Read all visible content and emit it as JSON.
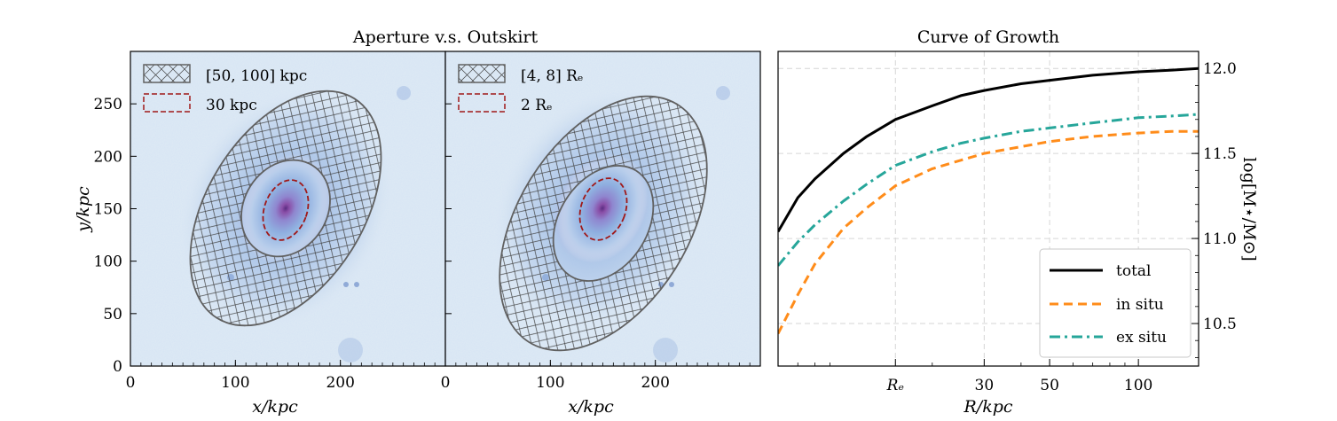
{
  "figure": {
    "left_title": "Aperture v.s. Outskirt",
    "right_title": "Curve of Growth"
  },
  "colors": {
    "ellipse_outline": "#606060",
    "aperture_dashed": "#a01818",
    "total": "#000000",
    "in_situ": "#ff8c1a",
    "ex_situ": "#26a69a",
    "map_background": "#dfeaf4",
    "map_core": "#5a2d82"
  },
  "images": {
    "xlabel": "x/kpc",
    "ylabel": "y/kpc",
    "x_ticks": [
      "0",
      "100",
      "200"
    ],
    "y_ticks": [
      "0",
      "50",
      "100",
      "150",
      "200",
      "250"
    ],
    "panels": [
      {
        "legend": [
          {
            "label": "[50, 100] kpc",
            "style": "hatched"
          },
          {
            "label": "30 kpc",
            "style": "dashed"
          }
        ]
      },
      {
        "legend": [
          {
            "label": "[4, 8] Rₑ",
            "style": "hatched"
          },
          {
            "label": "2 Rₑ",
            "style": "dashed"
          }
        ]
      }
    ]
  },
  "chart_data": {
    "type": "line",
    "title": "Curve of Growth",
    "xlabel": "R/kpc",
    "ylabel": "log[M⋆/M⊙]",
    "x_scale": "log",
    "xlim": [
      6,
      160
    ],
    "ylim": [
      10.25,
      12.1
    ],
    "y_axis_side": "right",
    "x_tick_labels": [
      {
        "label": "Rₑ",
        "x": 15
      },
      {
        "label": "30",
        "x": 30
      },
      {
        "label": "50",
        "x": 50
      },
      {
        "label": "100",
        "x": 100
      }
    ],
    "y_ticks": [
      10.5,
      11.0,
      11.5,
      12.0
    ],
    "y_tick_labels": [
      "10.5",
      "11.0",
      "11.5",
      "12.0"
    ],
    "grid": true,
    "legend_position": "lower-right",
    "x": [
      6,
      7,
      8,
      10,
      12,
      15,
      20,
      25,
      30,
      40,
      50,
      70,
      100,
      130,
      160
    ],
    "series": [
      {
        "name": "total",
        "style": "solid",
        "values": [
          11.04,
          11.24,
          11.35,
          11.5,
          11.6,
          11.7,
          11.78,
          11.84,
          11.87,
          11.91,
          11.93,
          11.96,
          11.98,
          11.99,
          12.0
        ]
      },
      {
        "name": "in situ",
        "style": "dashed",
        "values": [
          10.44,
          10.67,
          10.85,
          11.06,
          11.18,
          11.31,
          11.41,
          11.46,
          11.5,
          11.54,
          11.57,
          11.6,
          11.62,
          11.63,
          11.63
        ]
      },
      {
        "name": "ex situ",
        "style": "dashdot",
        "values": [
          10.84,
          10.98,
          11.08,
          11.22,
          11.32,
          11.43,
          11.51,
          11.56,
          11.59,
          11.63,
          11.65,
          11.68,
          11.71,
          11.72,
          11.73
        ]
      }
    ]
  }
}
